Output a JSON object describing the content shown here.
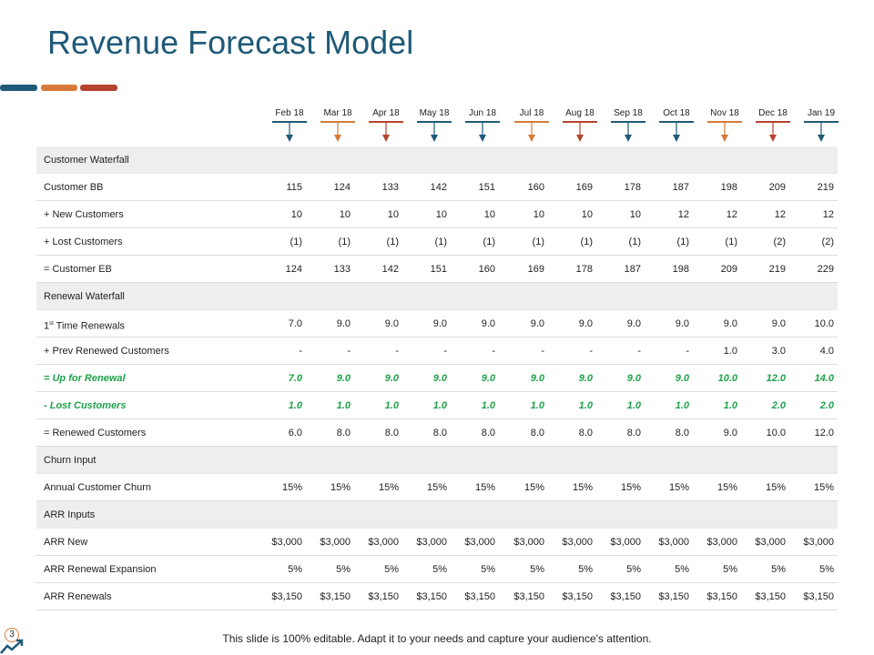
{
  "slide": {
    "title": "Revenue Forecast Model",
    "page_number": "3",
    "footer_text": "This slide is 100% editable. Adapt it to your needs and capture your audience's attention."
  },
  "colors": {
    "blue": "#1f5a78",
    "orange": "#d77a39",
    "red": "#b5432f",
    "green": "#1fa24a",
    "section_bg": "#eeeeee"
  },
  "months": [
    {
      "label": "Feb 18",
      "color": "#1f5a78"
    },
    {
      "label": "Mar 18",
      "color": "#d77a39"
    },
    {
      "label": "Apr 18",
      "color": "#b5432f"
    },
    {
      "label": "May 18",
      "color": "#1f5a78"
    },
    {
      "label": "Jun 18",
      "color": "#1f5a78"
    },
    {
      "label": "Jul 18",
      "color": "#d77a39"
    },
    {
      "label": "Aug 18",
      "color": "#b5432f"
    },
    {
      "label": "Sep 18",
      "color": "#1f5a78"
    },
    {
      "label": "Oct 18",
      "color": "#1f5a78"
    },
    {
      "label": "Nov 18",
      "color": "#d77a39"
    },
    {
      "label": "Dec 18",
      "color": "#b5432f"
    },
    {
      "label": "Jan 19",
      "color": "#1f5a78"
    }
  ],
  "rows": [
    {
      "type": "section",
      "label": "Customer Waterfall"
    },
    {
      "type": "data",
      "label": "Customer BB",
      "values": [
        "115",
        "124",
        "133",
        "142",
        "151",
        "160",
        "169",
        "178",
        "187",
        "198",
        "209",
        "219"
      ]
    },
    {
      "type": "data",
      "label": "+ New Customers",
      "values": [
        "10",
        "10",
        "10",
        "10",
        "10",
        "10",
        "10",
        "10",
        "12",
        "12",
        "12",
        "12"
      ]
    },
    {
      "type": "data",
      "label": "+ Lost Customers",
      "values": [
        "(1)",
        "(1)",
        "(1)",
        "(1)",
        "(1)",
        "(1)",
        "(1)",
        "(1)",
        "(1)",
        "(1)",
        "(2)",
        "(2)"
      ]
    },
    {
      "type": "data",
      "label": "= Customer EB",
      "values": [
        "124",
        "133",
        "142",
        "151",
        "160",
        "169",
        "178",
        "187",
        "198",
        "209",
        "219",
        "229"
      ]
    },
    {
      "type": "section",
      "label": "Renewal Waterfall"
    },
    {
      "type": "data",
      "label": "1",
      "label_sup": "st",
      "label_rest": " Time Renewals",
      "values": [
        "7.0",
        "9.0",
        "9.0",
        "9.0",
        "9.0",
        "9.0",
        "9.0",
        "9.0",
        "9.0",
        "9.0",
        "9.0",
        "10.0"
      ]
    },
    {
      "type": "data",
      "label": "+ Prev Renewed Customers",
      "values": [
        "-",
        "-",
        "-",
        "-",
        "-",
        "-",
        "-",
        "-",
        "-",
        "1.0",
        "3.0",
        "4.0"
      ]
    },
    {
      "type": "green",
      "label": "= Up for Renewal",
      "values": [
        "7.0",
        "9.0",
        "9.0",
        "9.0",
        "9.0",
        "9.0",
        "9.0",
        "9.0",
        "9.0",
        "10.0",
        "12.0",
        "14.0"
      ]
    },
    {
      "type": "green",
      "label": "- Lost Customers",
      "values": [
        "1.0",
        "1.0",
        "1.0",
        "1.0",
        "1.0",
        "1.0",
        "1.0",
        "1.0",
        "1.0",
        "1.0",
        "2.0",
        "2.0"
      ]
    },
    {
      "type": "data",
      "label": "= Renewed Customers",
      "values": [
        "6.0",
        "8.0",
        "8.0",
        "8.0",
        "8.0",
        "8.0",
        "8.0",
        "8.0",
        "8.0",
        "9.0",
        "10.0",
        "12.0"
      ]
    },
    {
      "type": "section",
      "label": "Churn Input"
    },
    {
      "type": "data",
      "label": "Annual Customer Churn",
      "values": [
        "15%",
        "15%",
        "15%",
        "15%",
        "15%",
        "15%",
        "15%",
        "15%",
        "15%",
        "15%",
        "15%",
        "15%"
      ]
    },
    {
      "type": "section",
      "label": "ARR Inputs"
    },
    {
      "type": "data",
      "label": "ARR New",
      "values": [
        "$3,000",
        "$3,000",
        "$3,000",
        "$3,000",
        "$3,000",
        "$3,000",
        "$3,000",
        "$3,000",
        "$3,000",
        "$3,000",
        "$3,000",
        "$3,000"
      ]
    },
    {
      "type": "data",
      "label": "ARR Renewal Expansion",
      "values": [
        "5%",
        "5%",
        "5%",
        "5%",
        "5%",
        "5%",
        "5%",
        "5%",
        "5%",
        "5%",
        "5%",
        "5%"
      ]
    },
    {
      "type": "data",
      "label": "ARR Renewals",
      "values": [
        "$3,150",
        "$3,150",
        "$3,150",
        "$3,150",
        "$3,150",
        "$3,150",
        "$3,150",
        "$3,150",
        "$3,150",
        "$3,150",
        "$3,150",
        "$3,150"
      ]
    }
  ]
}
